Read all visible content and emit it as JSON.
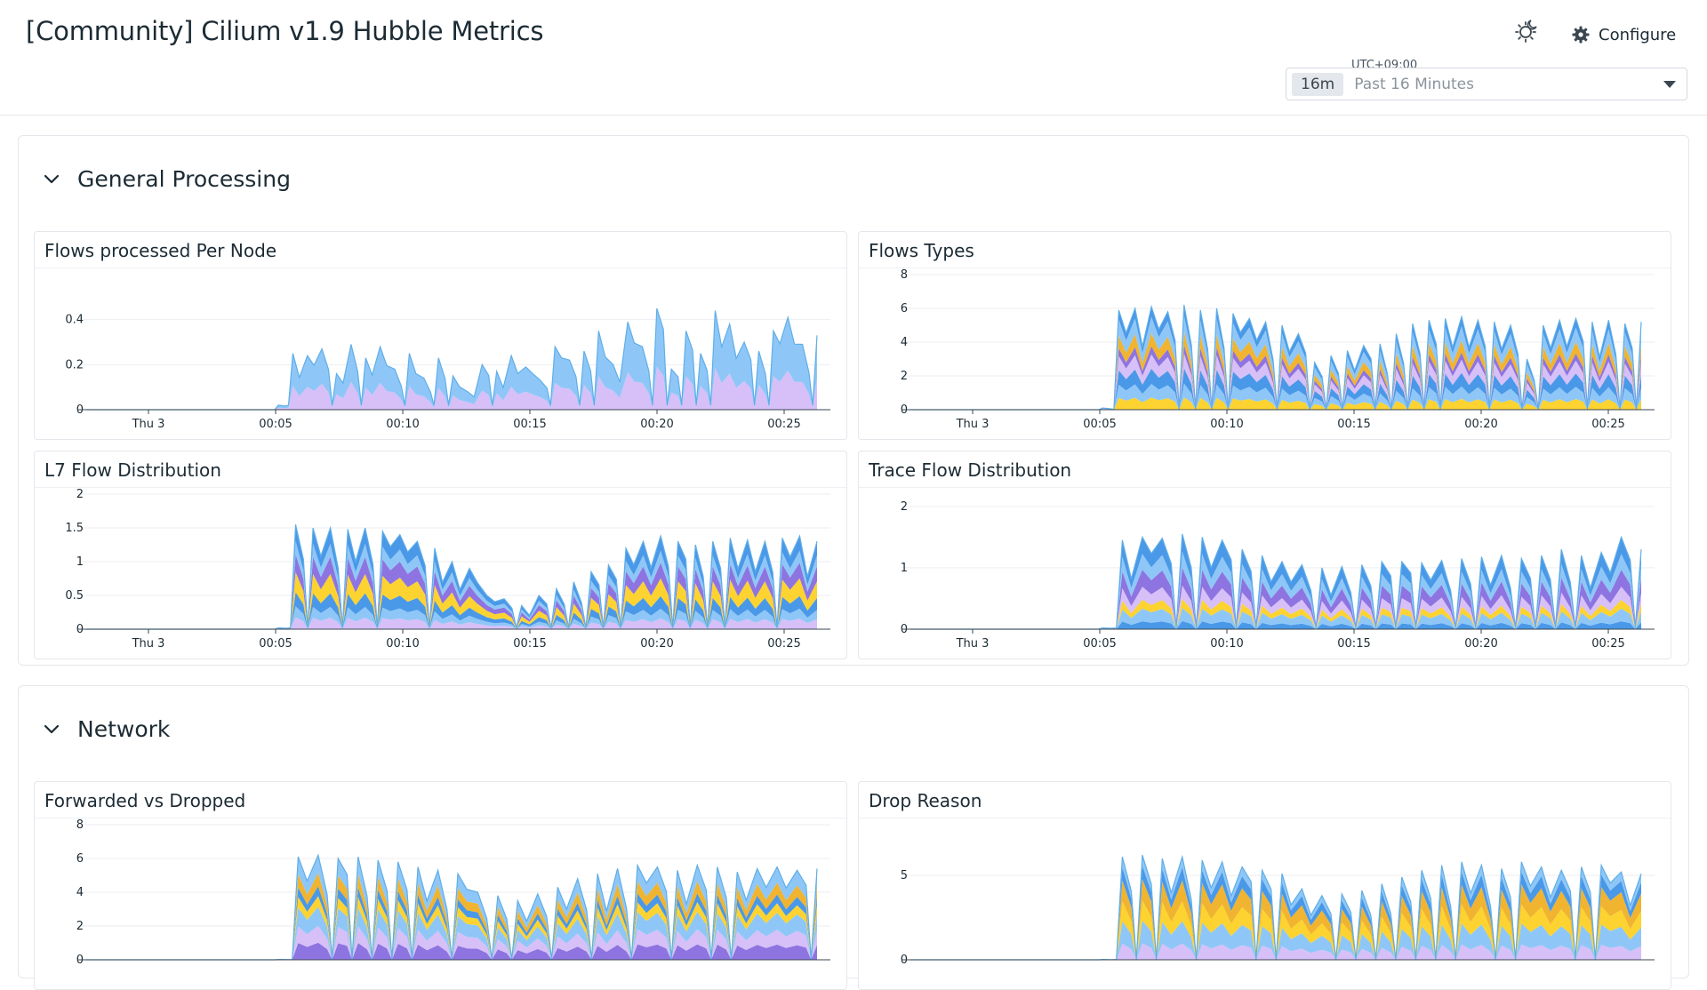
{
  "header": {
    "title": "[Community] Cilium v1.9 Hubble Metrics",
    "configure_label": "Configure",
    "timezone": "UTC+09:00",
    "time_badge": "16m",
    "time_range": "Past 16 Minutes"
  },
  "colors": {
    "lilac": "#d7bff8",
    "purple": "#8e74e0",
    "sky": "#8ec7f7",
    "blue": "#4a98e8",
    "yellow": "#fcd330",
    "gold": "#f0b430",
    "line": "#5faee8"
  },
  "groups": [
    {
      "title": "General Processing",
      "widgets": [
        {
          "title": "Flows processed Per Node",
          "chart_data": {
            "type": "area",
            "stacked": true,
            "x_ticks": [
              "Thu 3",
              "00:05",
              "00:10",
              "00:15",
              "00:20",
              "00:25"
            ],
            "y_ticks": [
              0,
              0.2,
              0.4
            ],
            "ylim": [
              0,
              0.6
            ],
            "series_colors": [
              "lilac",
              "sky"
            ],
            "levels": [
              0.02,
              0.25,
              0.24,
              0.27,
              0.16,
              0.29,
              0.23,
              0.28,
              0.18,
              0.25,
              0.14,
              0.23,
              0.15,
              0.08,
              0.2,
              0.17,
              0.24,
              0.19,
              0.13,
              0.28,
              0.22,
              0.26,
              0.35,
              0.2,
              0.39,
              0.28,
              0.45,
              0.18,
              0.35,
              0.25,
              0.44,
              0.38,
              0.3,
              0.26,
              0.35,
              0.41,
              0.29,
              0.33
            ],
            "spiky": true
          }
        },
        {
          "title": "Flows Types",
          "chart_data": {
            "type": "area",
            "stacked": true,
            "x_ticks": [
              "Thu 3",
              "00:05",
              "00:10",
              "00:15",
              "00:20",
              "00:25"
            ],
            "y_ticks": [
              0,
              2,
              4,
              6,
              8
            ],
            "ylim": [
              0,
              8
            ],
            "series_colors": [
              "yellow",
              "sky",
              "blue",
              "lilac",
              "purple",
              "gold",
              "sky",
              "blue"
            ],
            "levels": [
              0.1,
              5.9,
              6.0,
              6.1,
              5.8,
              6.2,
              5.9,
              6.0,
              5.7,
              5.4,
              5.2,
              5.0,
              4.5,
              2.8,
              3.2,
              3.5,
              3.8,
              3.9,
              4.5,
              5.1,
              5.3,
              5.4,
              5.5,
              5.3,
              5.2,
              5.0,
              3.0,
              5.0,
              5.3,
              5.4,
              5.2,
              5.3,
              5.1,
              5.2
            ],
            "spiky": true
          }
        },
        {
          "title": "L7 Flow Distribution",
          "chart_data": {
            "type": "area",
            "stacked": true,
            "x_ticks": [
              "Thu 3",
              "00:05",
              "00:10",
              "00:15",
              "00:20",
              "00:25"
            ],
            "y_ticks": [
              0,
              0.5,
              1,
              1.5,
              2
            ],
            "y_tick_labels": [
              "0",
              "0.5",
              "1",
              "1.5",
              "2"
            ],
            "ylim": [
              0,
              2
            ],
            "series_colors": [
              "lilac",
              "sky",
              "blue",
              "yellow",
              "purple",
              "sky",
              "blue"
            ],
            "levels": [
              0.02,
              1.55,
              1.5,
              1.5,
              1.48,
              1.5,
              1.45,
              1.4,
              1.3,
              1.2,
              1.0,
              0.9,
              0.5,
              0.45,
              0.35,
              0.5,
              0.6,
              0.7,
              0.85,
              0.95,
              1.2,
              1.3,
              1.38,
              1.3,
              1.25,
              1.3,
              1.35,
              1.32,
              1.3,
              1.35,
              1.38,
              1.3
            ],
            "spiky": true
          }
        },
        {
          "title": "Trace Flow Distribution",
          "chart_data": {
            "type": "area",
            "stacked": true,
            "x_ticks": [
              "Thu 3",
              "00:05",
              "00:10",
              "00:15",
              "00:20",
              "00:25"
            ],
            "y_ticks": [
              0,
              1,
              2
            ],
            "ylim": [
              0,
              2.2
            ],
            "series_colors": [
              "blue",
              "sky",
              "yellow",
              "lilac",
              "purple",
              "sky",
              "blue"
            ],
            "levels": [
              0.02,
              1.45,
              1.5,
              1.48,
              1.55,
              1.5,
              1.45,
              1.3,
              1.2,
              1.1,
              1.05,
              1.0,
              1.02,
              1.05,
              1.1,
              1.1,
              1.08,
              1.12,
              1.15,
              1.18,
              1.2,
              1.15,
              1.2,
              1.3,
              1.2,
              1.25,
              1.5,
              1.3
            ],
            "spiky": true
          }
        }
      ]
    },
    {
      "title": "Network",
      "widgets": [
        {
          "title": "Forwarded vs Dropped",
          "chart_data": {
            "type": "area",
            "stacked": true,
            "x_ticks": [],
            "y_ticks": [
              0,
              2,
              4,
              6,
              8
            ],
            "ylim": [
              0,
              8
            ],
            "series_colors": [
              "purple",
              "lilac",
              "sky",
              "yellow",
              "blue",
              "gold",
              "sky"
            ],
            "levels": [
              0.02,
              6.1,
              6.2,
              6.0,
              6.1,
              5.9,
              5.8,
              5.5,
              5.3,
              5.1,
              4.0,
              3.8,
              3.5,
              3.9,
              4.3,
              4.8,
              5.1,
              5.4,
              5.6,
              5.5,
              5.3,
              5.6,
              5.5,
              5.2,
              5.4,
              5.5,
              5.3,
              5.4
            ],
            "spiky": true
          }
        },
        {
          "title": "Drop Reason",
          "chart_data": {
            "type": "area",
            "stacked": true,
            "x_ticks": [],
            "y_ticks": [
              0,
              5
            ],
            "ylim": [
              0,
              8
            ],
            "series_colors": [
              "lilac",
              "sky",
              "yellow",
              "gold",
              "blue",
              "sky"
            ],
            "levels": [
              0.02,
              6.1,
              6.2,
              6.0,
              6.1,
              5.9,
              5.8,
              5.5,
              5.3,
              5.1,
              4.2,
              3.8,
              3.9,
              4.1,
              4.5,
              4.9,
              5.3,
              5.6,
              5.8,
              5.6,
              5.4,
              5.8,
              5.5,
              5.3,
              5.5,
              5.6,
              5.2,
              5.1
            ],
            "spiky": true
          }
        }
      ]
    }
  ]
}
